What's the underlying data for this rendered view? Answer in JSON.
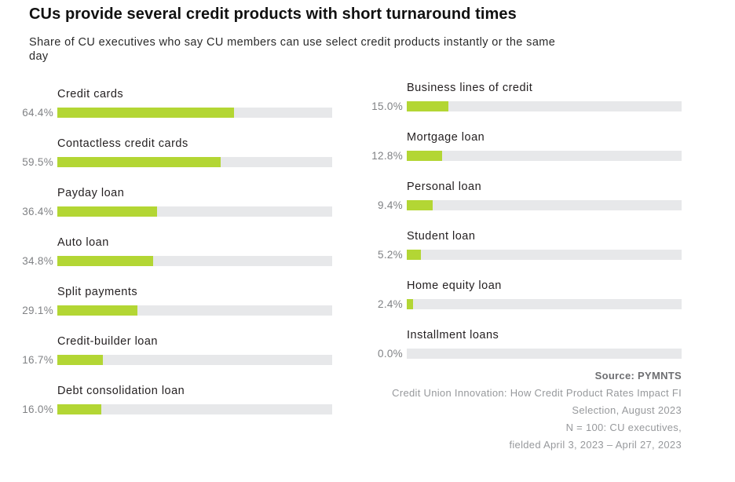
{
  "header": {
    "title": "CUs provide several credit products with short turnaround times",
    "subtitle": "Share of CU executives who say CU members can use select credit products instantly or the same day"
  },
  "chart_data": {
    "type": "bar",
    "orientation": "horizontal",
    "value_format": "percent",
    "xlim": [
      0,
      100
    ],
    "grid": false,
    "legend": "none",
    "categories": [
      "Credit cards",
      "Contactless credit cards",
      "Payday loan",
      "Auto loan",
      "Split payments",
      "Credit-builder loan",
      "Debt consolidation loan",
      "Business lines of credit",
      "Mortgage loan",
      "Personal loan",
      "Student loan",
      "Home equity loan",
      "Installment loans"
    ],
    "values": [
      64.4,
      59.5,
      36.4,
      34.8,
      29.1,
      16.7,
      16.0,
      15.0,
      12.8,
      9.4,
      5.2,
      2.4,
      0.0
    ],
    "colors": {
      "bar_fill": "#b3d634",
      "bar_track": "#e7e8ea",
      "value_text": "#808285",
      "label_text": "#231f20"
    },
    "columns": [
      {
        "items": [
          {
            "label": "Credit cards",
            "value": 64.4,
            "value_label": "64.4%"
          },
          {
            "label": "Contactless credit cards",
            "value": 59.5,
            "value_label": "59.5%"
          },
          {
            "label": "Payday loan",
            "value": 36.4,
            "value_label": "36.4%"
          },
          {
            "label": "Auto loan",
            "value": 34.8,
            "value_label": "34.8%"
          },
          {
            "label": "Split payments",
            "value": 29.1,
            "value_label": "29.1%"
          },
          {
            "label": "Credit-builder loan",
            "value": 16.7,
            "value_label": "16.7%"
          },
          {
            "label": "Debt consolidation loan",
            "value": 16.0,
            "value_label": "16.0%"
          }
        ]
      },
      {
        "items": [
          {
            "label": "Business lines of credit",
            "value": 15.0,
            "value_label": "15.0%"
          },
          {
            "label": "Mortgage loan",
            "value": 12.8,
            "value_label": "12.8%"
          },
          {
            "label": "Personal loan",
            "value": 9.4,
            "value_label": "9.4%"
          },
          {
            "label": "Student loan",
            "value": 5.2,
            "value_label": "5.2%"
          },
          {
            "label": "Home equity loan",
            "value": 2.4,
            "value_label": "2.4%"
          },
          {
            "label": "Installment loans",
            "value": 0.0,
            "value_label": "0.0%"
          }
        ]
      }
    ]
  },
  "source": {
    "bold_line": "Source: PYMNTS",
    "lines": [
      "Credit Union Innovation: How Credit Product Rates Impact FI",
      "Selection, August 2023",
      "N = 100: CU executives,",
      "fielded April 3, 2023 – April 27, 2023"
    ]
  }
}
